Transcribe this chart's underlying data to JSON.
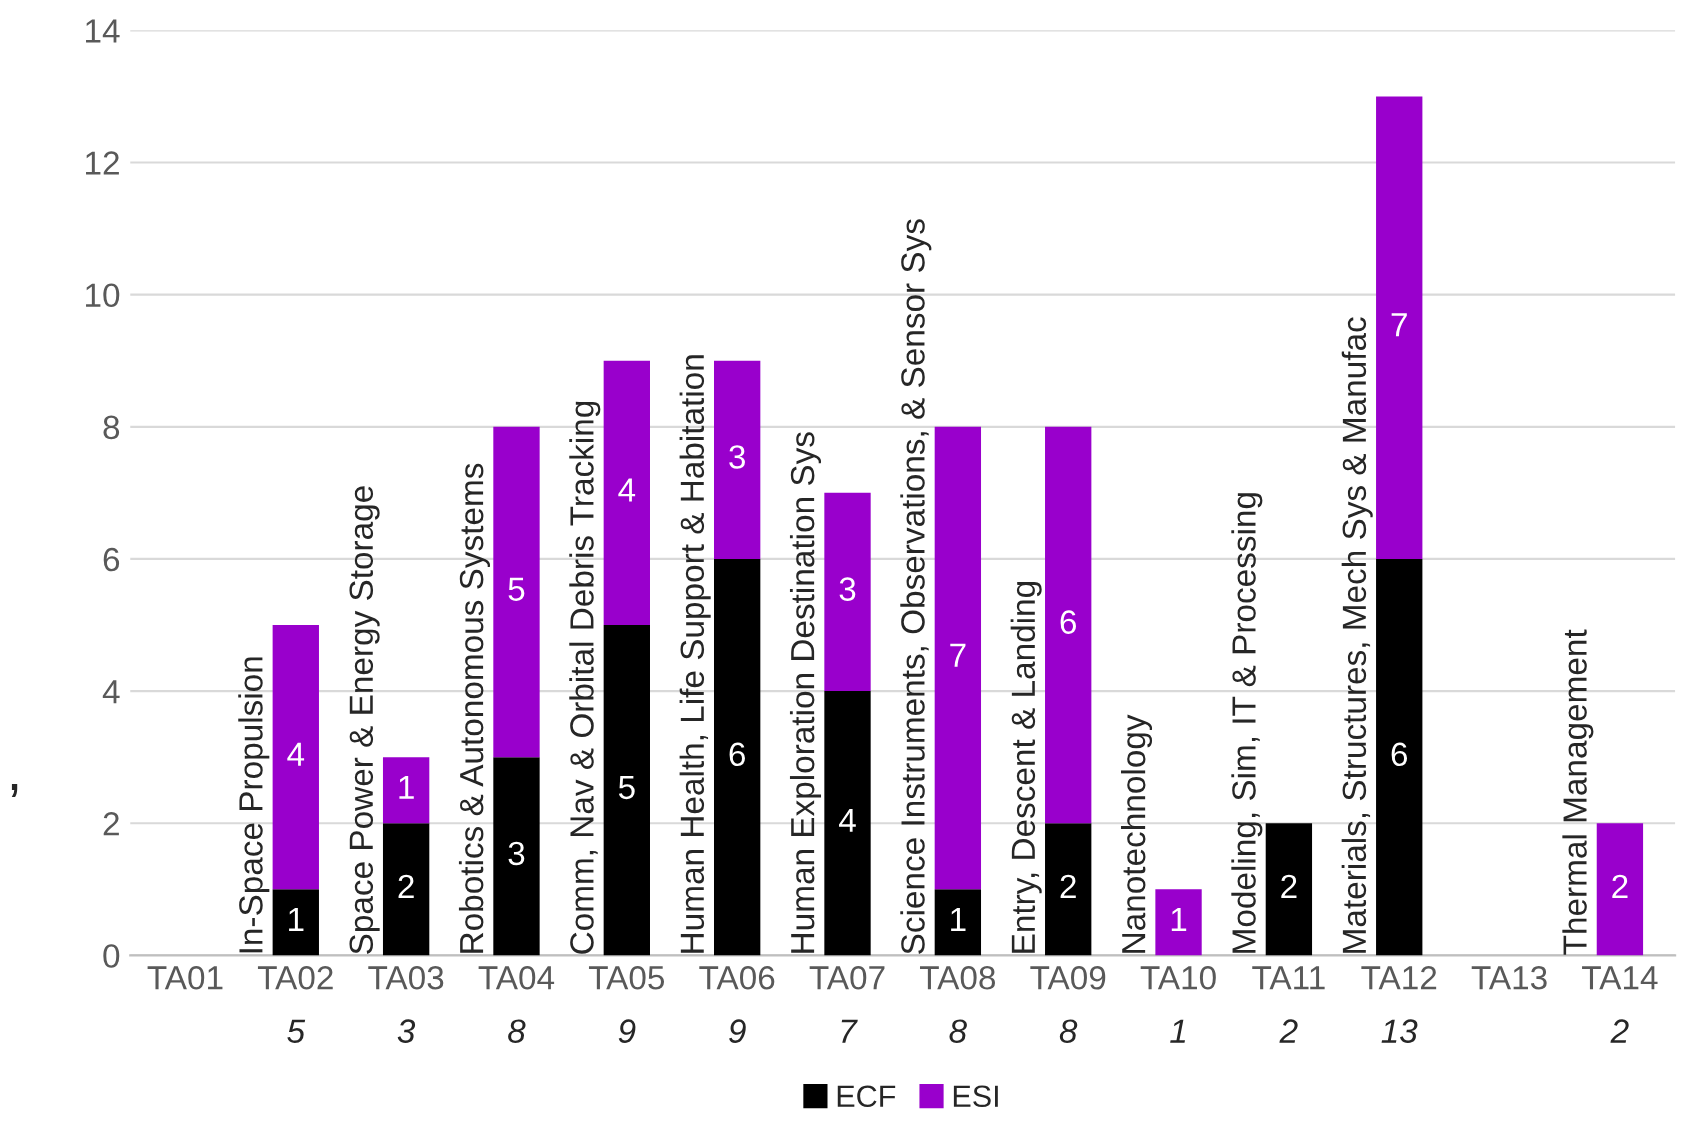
{
  "chart_data": {
    "type": "bar",
    "stacked": true,
    "categories": [
      "TA01",
      "TA02",
      "TA03",
      "TA04",
      "TA05",
      "TA06",
      "TA07",
      "TA08",
      "TA09",
      "TA10",
      "TA11",
      "TA12",
      "TA13",
      "TA14"
    ],
    "series": [
      {
        "name": "ECF",
        "color": "#000000",
        "values": [
          0,
          1,
          2,
          3,
          5,
          6,
          4,
          1,
          2,
          0,
          2,
          6,
          0,
          0
        ],
        "value_labels": [
          null,
          "1",
          "2",
          "3",
          "5",
          "6",
          "4",
          "1",
          "2",
          null,
          "2",
          "6",
          null,
          null
        ]
      },
      {
        "name": "ESI",
        "color": "#9900cc",
        "values": [
          0,
          4,
          1,
          5,
          4,
          3,
          3,
          7,
          6,
          1,
          0,
          7,
          0,
          2
        ],
        "value_labels": [
          null,
          "4",
          "1",
          "5",
          "4",
          "3",
          "3",
          "7",
          "6",
          "1",
          null,
          "7",
          null,
          "2"
        ]
      }
    ],
    "totals": [
      null,
      "5",
      "3",
      "8",
      "9",
      "9",
      "7",
      "8",
      "8",
      "1",
      "2",
      "13",
      null,
      "2"
    ],
    "ylim": [
      0,
      14
    ],
    "yticks": [
      0,
      2,
      4,
      6,
      8,
      10,
      12,
      14
    ],
    "grid": "y",
    "legend": "bottom",
    "annotations": [
      {
        "text": "In-Space Propulsion",
        "x": "TA02",
        "y": 0
      },
      {
        "text": "Space Power & Energy Storage",
        "x": "TA03",
        "y": 0
      },
      {
        "text": "Robotics & Autonomous Systems",
        "x": "TA04",
        "y": 0
      },
      {
        "text": "Comm, Nav & Orbital Debris Tracking",
        "x": "TA05",
        "y": 0
      },
      {
        "text": "Human Health, Life Support & Habitation",
        "x": "TA06",
        "y": 0
      },
      {
        "text": "Human Exploration Destination Sys",
        "x": "TA07",
        "y": 0
      },
      {
        "text": "Science Instruments, Observations, & Sensor Sys",
        "x": "TA08",
        "y": 0
      },
      {
        "text": "Entry, Descent & Landing",
        "x": "TA09",
        "y": 0
      },
      {
        "text": "Nanotechnology",
        "x": "TA10",
        "y": 0
      },
      {
        "text": "Modeling, Sim, IT & Processing",
        "x": "TA11",
        "y": 0
      },
      {
        "text": "Materials, Structures, Mech Sys & Manufac",
        "x": "TA12",
        "y": 0
      },
      {
        "text": "Thermal Management",
        "x": "TA14",
        "y": 0
      },
      ","
    ]
  }
}
